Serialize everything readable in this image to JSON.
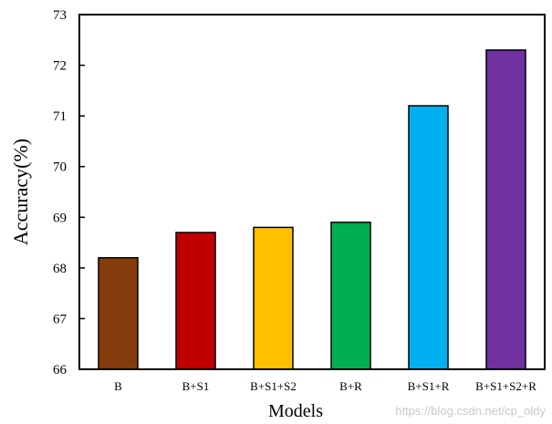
{
  "chart_data": {
    "type": "bar",
    "categories": [
      "B",
      "B+S1",
      "B+S1+S2",
      "B+R",
      "B+S1+R",
      "B+S1+S2+R"
    ],
    "values": [
      68.2,
      68.7,
      68.8,
      68.9,
      71.2,
      72.3
    ],
    "colors": [
      "#843C0C",
      "#C00000",
      "#FFC000",
      "#00B050",
      "#00B0F0",
      "#7030A0"
    ],
    "xlabel": "Models",
    "ylabel": "Accuracy(%)",
    "ylim": [
      66,
      73
    ],
    "yticks": [
      66,
      67,
      68,
      69,
      70,
      71,
      72,
      73
    ],
    "grid": false,
    "legend": "none"
  },
  "watermark": "https://blog.csdn.net/cp_oldy"
}
